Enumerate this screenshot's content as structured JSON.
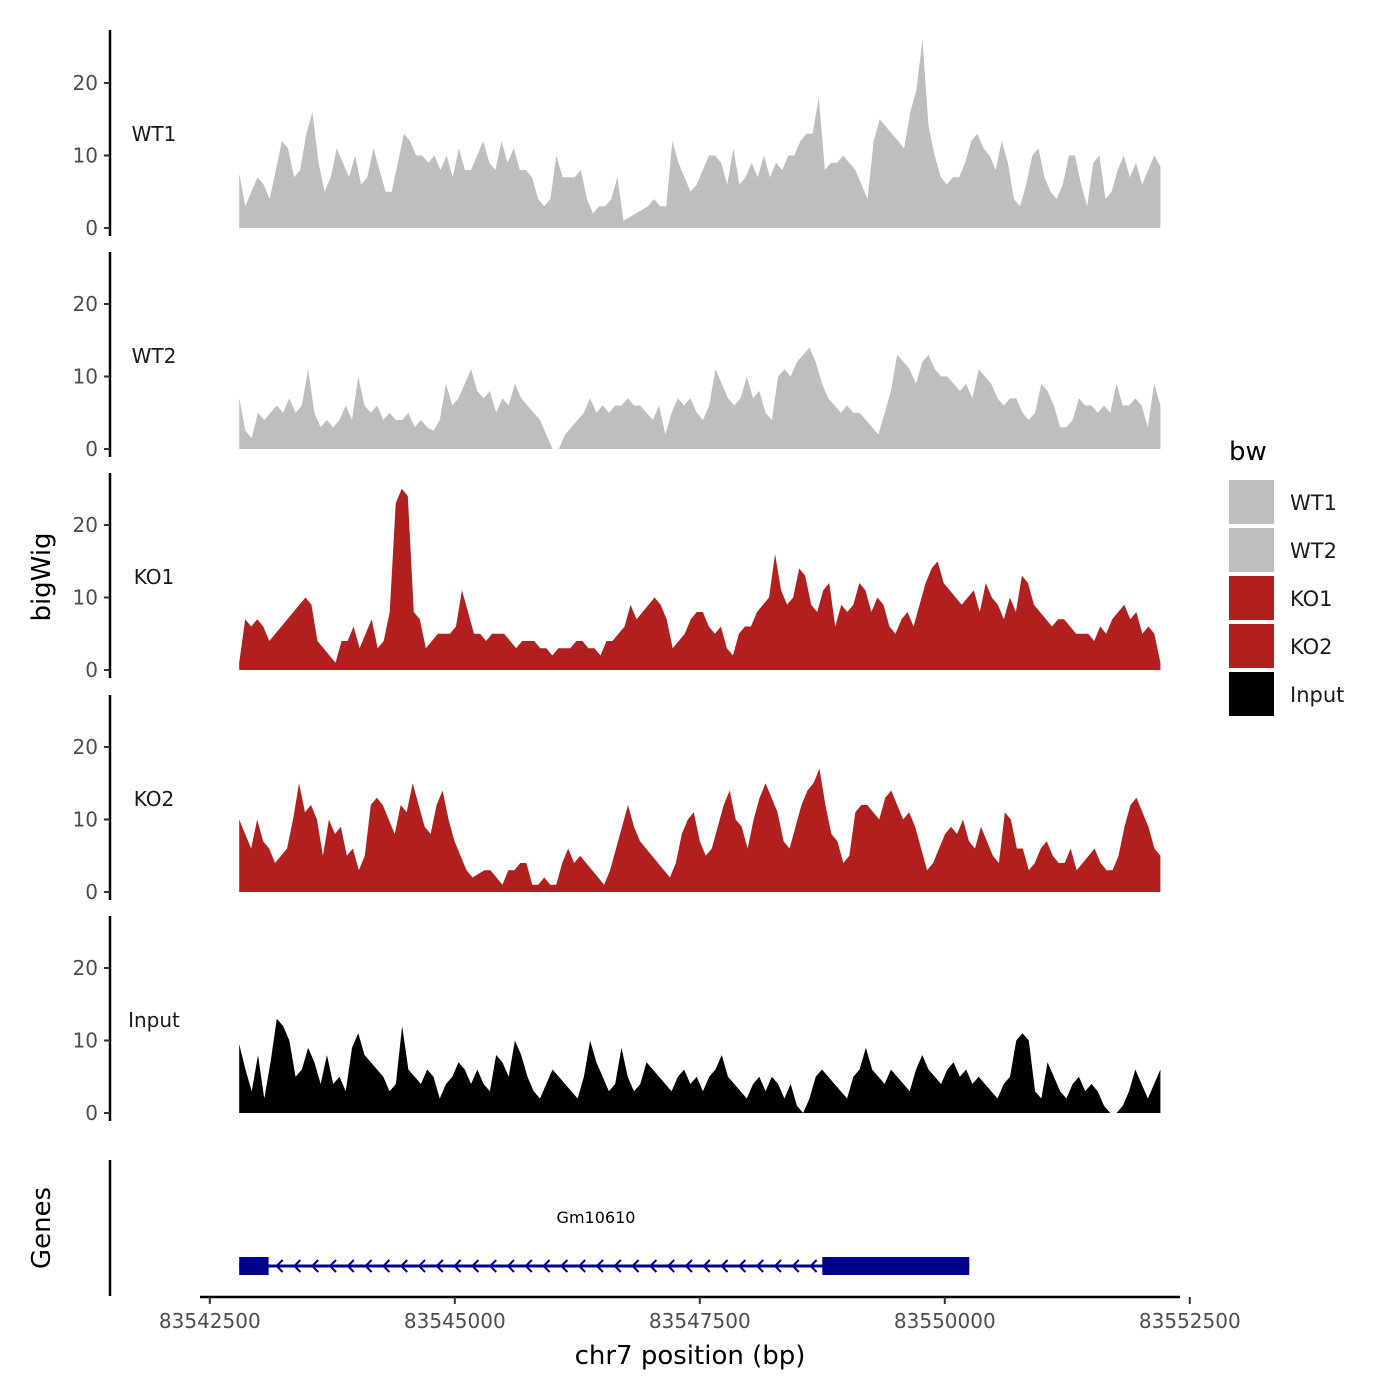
{
  "chart_data": {
    "type": "area",
    "ylabel": "bigWig",
    "xlabel": "chr7 position (bp)",
    "genes_label": "Genes",
    "xlim": [
      83542400,
      83552400
    ],
    "x_start": 83542800,
    "x_end": 83552200,
    "x_ticks": [
      83542500,
      83545000,
      83547500,
      83550000,
      83552500
    ],
    "x_tick_labels": [
      "83542500",
      "83545000",
      "83547500",
      "83550000",
      "83552500"
    ],
    "ylim": [
      0,
      27
    ],
    "y_ticks": [
      0,
      10,
      20
    ],
    "y_tick_labels": [
      "0",
      "10",
      "20"
    ],
    "legend": {
      "title": "bw",
      "entries": [
        {
          "label": "WT1",
          "color": "#bebebe"
        },
        {
          "label": "WT2",
          "color": "#bebebe"
        },
        {
          "label": "KO1",
          "color": "#b21f1f"
        },
        {
          "label": "KO2",
          "color": "#b21f1f"
        },
        {
          "label": "Input",
          "color": "#000000"
        }
      ]
    },
    "series": [
      {
        "name": "WT1",
        "color": "#bebebe",
        "values": [
          7.5,
          3,
          5,
          7,
          6,
          4,
          8,
          12,
          11,
          7,
          8,
          13,
          16,
          9,
          5,
          7,
          11,
          9,
          7,
          10,
          6,
          7,
          11,
          8,
          5,
          5,
          9,
          13,
          12,
          10,
          10,
          9,
          10,
          8,
          10,
          7,
          11,
          8,
          8,
          10,
          12,
          9,
          8,
          12,
          9,
          11,
          8,
          8,
          7,
          4,
          3,
          4,
          10,
          7,
          7,
          7,
          8,
          4,
          2,
          3,
          3,
          4,
          7,
          1,
          1.5,
          2,
          2.5,
          3,
          4,
          3,
          3,
          12,
          9,
          7,
          5,
          6,
          8,
          10,
          10,
          9,
          6,
          11,
          6,
          7,
          9,
          7,
          10,
          7,
          9,
          8,
          10,
          10,
          12,
          13,
          13,
          18,
          8,
          9,
          9,
          10,
          9,
          8,
          6,
          4,
          12,
          15,
          14,
          13,
          12,
          11,
          16,
          19,
          26,
          14,
          10,
          7,
          6,
          7,
          7,
          9,
          12,
          13,
          11,
          10,
          8,
          12,
          9,
          4,
          3,
          6,
          10,
          11,
          7,
          5,
          4,
          6,
          10,
          10,
          6,
          3,
          9,
          10,
          4,
          5,
          8,
          10,
          7,
          9,
          6,
          8,
          10,
          8.5
        ]
      },
      {
        "name": "WT2",
        "color": "#bebebe",
        "values": [
          7,
          2.5,
          1.5,
          5,
          4,
          5,
          6,
          5,
          7,
          5,
          6,
          11,
          5,
          3,
          4,
          3,
          4,
          6,
          4,
          10,
          6,
          5,
          6,
          4,
          5,
          4,
          4,
          5,
          3,
          4,
          3,
          2.5,
          4,
          9,
          6,
          7,
          9,
          11,
          8,
          7,
          8,
          5,
          7,
          6,
          9,
          7,
          6,
          5,
          4,
          2,
          0,
          0,
          2,
          3,
          4,
          5,
          7,
          5,
          6,
          5,
          6,
          6,
          7,
          6,
          6,
          5,
          4,
          6,
          2,
          5,
          7,
          6,
          7,
          5,
          4,
          6,
          11,
          9,
          7,
          6,
          7,
          10,
          7,
          8,
          5,
          4,
          10,
          11,
          10,
          12,
          13,
          14,
          12,
          9,
          7,
          6,
          5,
          6,
          5,
          5,
          4,
          3,
          2,
          5,
          8,
          13,
          12,
          11,
          9,
          12,
          13,
          11,
          10,
          10,
          9,
          8,
          9,
          7,
          11,
          10,
          9,
          7,
          6,
          7,
          7,
          5,
          4,
          5,
          9,
          8,
          6,
          3,
          3,
          4,
          7,
          6,
          6,
          5,
          6,
          5,
          9,
          6,
          6,
          7,
          6,
          3,
          9,
          6
        ]
      },
      {
        "name": "KO1",
        "color": "#b21f1f",
        "values": [
          1,
          7,
          6,
          7,
          6,
          4,
          5,
          6,
          7,
          8,
          9,
          10,
          9,
          4,
          3,
          2,
          1,
          4,
          4,
          6,
          3,
          5,
          7,
          3,
          4,
          8,
          23,
          25,
          24,
          8,
          7,
          3,
          4,
          5,
          5,
          5,
          6,
          11,
          8,
          5,
          5,
          4,
          5,
          5,
          5,
          4,
          3,
          4,
          4,
          4,
          3,
          3,
          2,
          3,
          3,
          3,
          4,
          4,
          3,
          3,
          2,
          4,
          4,
          5,
          6,
          9,
          7,
          8,
          9,
          10,
          9,
          7,
          3,
          4,
          5,
          7,
          8,
          8,
          6,
          5,
          6,
          3,
          2,
          5,
          6,
          6,
          8,
          9,
          10,
          16,
          11,
          9,
          10,
          14,
          13,
          9,
          8,
          11,
          12,
          6,
          9,
          8,
          9,
          12,
          11,
          8,
          10,
          9,
          6,
          5,
          7,
          8,
          6,
          9,
          12,
          14,
          15,
          12,
          11,
          10,
          9,
          10,
          11,
          8,
          12,
          10,
          9,
          7,
          10,
          8,
          13,
          12,
          9,
          8,
          7,
          6,
          7,
          7,
          6,
          5,
          5,
          5,
          4,
          6,
          5,
          7,
          8,
          9,
          7,
          8,
          5,
          6,
          5,
          1
        ]
      },
      {
        "name": "KO2",
        "color": "#b21f1f",
        "values": [
          10,
          8,
          6,
          10,
          7,
          6,
          4,
          5,
          6,
          10,
          15,
          11,
          12,
          10,
          5,
          10,
          8,
          9,
          5,
          6,
          3,
          5,
          12,
          13,
          12,
          10,
          8,
          12,
          11,
          15,
          12,
          9,
          8,
          12,
          14,
          10,
          7,
          5,
          3,
          2,
          2.5,
          3,
          3,
          2,
          1,
          3,
          3,
          4,
          4,
          1,
          1,
          2,
          1,
          1,
          4,
          6,
          4,
          5,
          4,
          3,
          2,
          1,
          3,
          6,
          9,
          12,
          9,
          7,
          6,
          5,
          4,
          3,
          2,
          4,
          8,
          10,
          11,
          7,
          5,
          6,
          9,
          12,
          14,
          10,
          9,
          6,
          10,
          13,
          15,
          13,
          11,
          7,
          6,
          9,
          12,
          14,
          15,
          17,
          12,
          8,
          7,
          4,
          5,
          11,
          12,
          12,
          11,
          10,
          13,
          14,
          12,
          10,
          11,
          9,
          6,
          3,
          4,
          6,
          8,
          9,
          8,
          10,
          7,
          6,
          9,
          7,
          5,
          4,
          11,
          10,
          6,
          6,
          3,
          4,
          6,
          7,
          5,
          4,
          4,
          6,
          3,
          4,
          5,
          6,
          4,
          3,
          3,
          5,
          9,
          12,
          13,
          11,
          9,
          6,
          5
        ]
      },
      {
        "name": "Input",
        "color": "#000000",
        "values": [
          9.5,
          6,
          3,
          8,
          2,
          7,
          13,
          12,
          10,
          5,
          6,
          9,
          7,
          4,
          8,
          4,
          5,
          3,
          9,
          11,
          8,
          7,
          6,
          5,
          3,
          4,
          12,
          6,
          5,
          4,
          6,
          5,
          2,
          4,
          5,
          7,
          6,
          4,
          6,
          4,
          3,
          8,
          7,
          5,
          10,
          8,
          5,
          3,
          2,
          4,
          6,
          5,
          4,
          3,
          2,
          5,
          10,
          7,
          5,
          3,
          4,
          9,
          5,
          3,
          4,
          7,
          6,
          5,
          4,
          3,
          5,
          6,
          4,
          5,
          3,
          5,
          6,
          8,
          5,
          4,
          3,
          2,
          4,
          5,
          3,
          5,
          4,
          2,
          4,
          1,
          0,
          2,
          5,
          6,
          5,
          4,
          3,
          2,
          5,
          6,
          9,
          6,
          5,
          4,
          6,
          5,
          4,
          3,
          6,
          8,
          6,
          5,
          4,
          6,
          7,
          5,
          6,
          4,
          5,
          4,
          3,
          2,
          4,
          5,
          10,
          11,
          10,
          3,
          2,
          7,
          5,
          3,
          2,
          4,
          5,
          3,
          4,
          3,
          1,
          0,
          0,
          1,
          3,
          6,
          4,
          2,
          4,
          6
        ]
      }
    ],
    "genes": [
      {
        "name": "Gm10610",
        "start": 83542800,
        "end": 83550250,
        "strand": "-",
        "exons": [
          {
            "start": 83542800,
            "end": 83543100
          },
          {
            "start": 83548750,
            "end": 83550250
          }
        ],
        "color": "#00008b"
      }
    ]
  }
}
